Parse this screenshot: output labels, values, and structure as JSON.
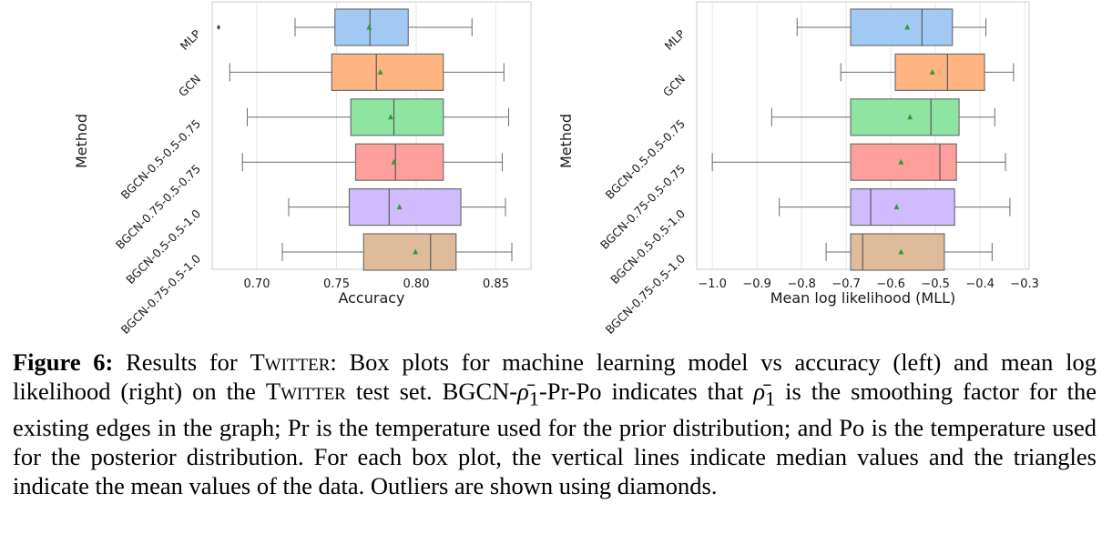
{
  "chart_data": [
    {
      "type": "box",
      "orientation": "horizontal",
      "xlabel": "Accuracy",
      "ylabel": "Method",
      "xlim": [
        0.672,
        0.872
      ],
      "xticks": [
        "0.70",
        "0.75",
        "0.80",
        "0.85"
      ],
      "xtick_values": [
        0.7,
        0.75,
        0.8,
        0.85
      ],
      "grid": true,
      "categories": [
        "MLP",
        "GCN",
        "BGCN-0.5-0.5-0.75",
        "BGCN-0.75-0.5-0.75",
        "BGCN-0.5-0.5-1.0",
        "BGCN-0.75-0.5-1.0"
      ],
      "colors": [
        "#a1c9f4",
        "#ffb482",
        "#8de5a1",
        "#ff9f9b",
        "#d0bbff",
        "#debb9b"
      ],
      "boxes": [
        {
          "whisker_low": 0.724,
          "q1": 0.749,
          "median": 0.771,
          "q3": 0.795,
          "whisker_high": 0.835,
          "mean": 0.7705,
          "outliers": [
            0.676
          ]
        },
        {
          "whisker_low": 0.683,
          "q1": 0.747,
          "median": 0.775,
          "q3": 0.817,
          "whisker_high": 0.855,
          "mean": 0.7775,
          "outliers": []
        },
        {
          "whisker_low": 0.694,
          "q1": 0.759,
          "median": 0.786,
          "q3": 0.817,
          "whisker_high": 0.858,
          "mean": 0.784,
          "outliers": []
        },
        {
          "whisker_low": 0.691,
          "q1": 0.762,
          "median": 0.787,
          "q3": 0.817,
          "whisker_high": 0.854,
          "mean": 0.786,
          "outliers": []
        },
        {
          "whisker_low": 0.72,
          "q1": 0.758,
          "median": 0.783,
          "q3": 0.828,
          "whisker_high": 0.856,
          "mean": 0.7895,
          "outliers": []
        },
        {
          "whisker_low": 0.716,
          "q1": 0.767,
          "median": 0.809,
          "q3": 0.825,
          "whisker_high": 0.86,
          "mean": 0.7995,
          "outliers": []
        }
      ],
      "mean_marker": "triangle",
      "mean_color": "#2ca02c",
      "outlier_marker": "diamond"
    },
    {
      "type": "box",
      "orientation": "horizontal",
      "xlabel": "Mean log likelihood (MLL)",
      "ylabel": "Method",
      "xlim": [
        -1.035,
        -0.29
      ],
      "xticks": [
        "−1.0",
        "−0.9",
        "−0.8",
        "−0.7",
        "−0.6",
        "−0.5",
        "−0.4",
        "−0.3"
      ],
      "xtick_values": [
        -1.0,
        -0.9,
        -0.8,
        -0.7,
        -0.6,
        -0.5,
        -0.4,
        -0.3
      ],
      "grid": true,
      "categories": [
        "MLP",
        "GCN",
        "BGCN-0.5-0.5-0.75",
        "BGCN-0.75-0.5-0.75",
        "BGCN-0.5-0.5-1.0",
        "BGCN-0.75-0.5-1.0"
      ],
      "colors": [
        "#a1c9f4",
        "#ffb482",
        "#8de5a1",
        "#ff9f9b",
        "#d0bbff",
        "#debb9b"
      ],
      "boxes": [
        {
          "whisker_low": -0.81,
          "q1": -0.69,
          "median": -0.53,
          "q3": -0.462,
          "whisker_high": -0.387,
          "mean": -0.563,
          "outliers": []
        },
        {
          "whisker_low": -0.712,
          "q1": -0.59,
          "median": -0.473,
          "q3": -0.39,
          "whisker_high": -0.325,
          "mean": -0.507,
          "outliers": []
        },
        {
          "whisker_low": -0.867,
          "q1": -0.69,
          "median": -0.51,
          "q3": -0.447,
          "whisker_high": -0.367,
          "mean": -0.557,
          "outliers": []
        },
        {
          "whisker_low": -1.0,
          "q1": -0.69,
          "median": -0.49,
          "q3": -0.453,
          "whisker_high": -0.343,
          "mean": -0.577,
          "outliers": []
        },
        {
          "whisker_low": -0.85,
          "q1": -0.69,
          "median": -0.645,
          "q3": -0.457,
          "whisker_high": -0.333,
          "mean": -0.587,
          "outliers": []
        },
        {
          "whisker_low": -0.745,
          "q1": -0.69,
          "median": -0.663,
          "q3": -0.48,
          "whisker_high": -0.373,
          "mean": -0.577,
          "outliers": []
        }
      ],
      "mean_marker": "triangle",
      "mean_color": "#2ca02c",
      "outlier_marker": "diamond"
    }
  ],
  "caption": {
    "label": "Figure 6:",
    "t1": " Results for ",
    "twitter": "Twitter",
    "t2": ": Box plots for machine learning model vs accuracy (left) and mean log likelihood (right) on the ",
    "t3": " test set. BGCN-",
    "rho": "ρ̄",
    "sub1": "1",
    "t4": "-Pr-Po indicates that ",
    "t5": " is the smoothing factor for the existing edges in the graph; Pr is the temperature used for the prior distribution; and Po is the temperature used for the posterior distribution. For each box plot, the vertical lines indicate median values and the triangles indicate the mean values of the data.  Outliers are shown using diamonds."
  }
}
